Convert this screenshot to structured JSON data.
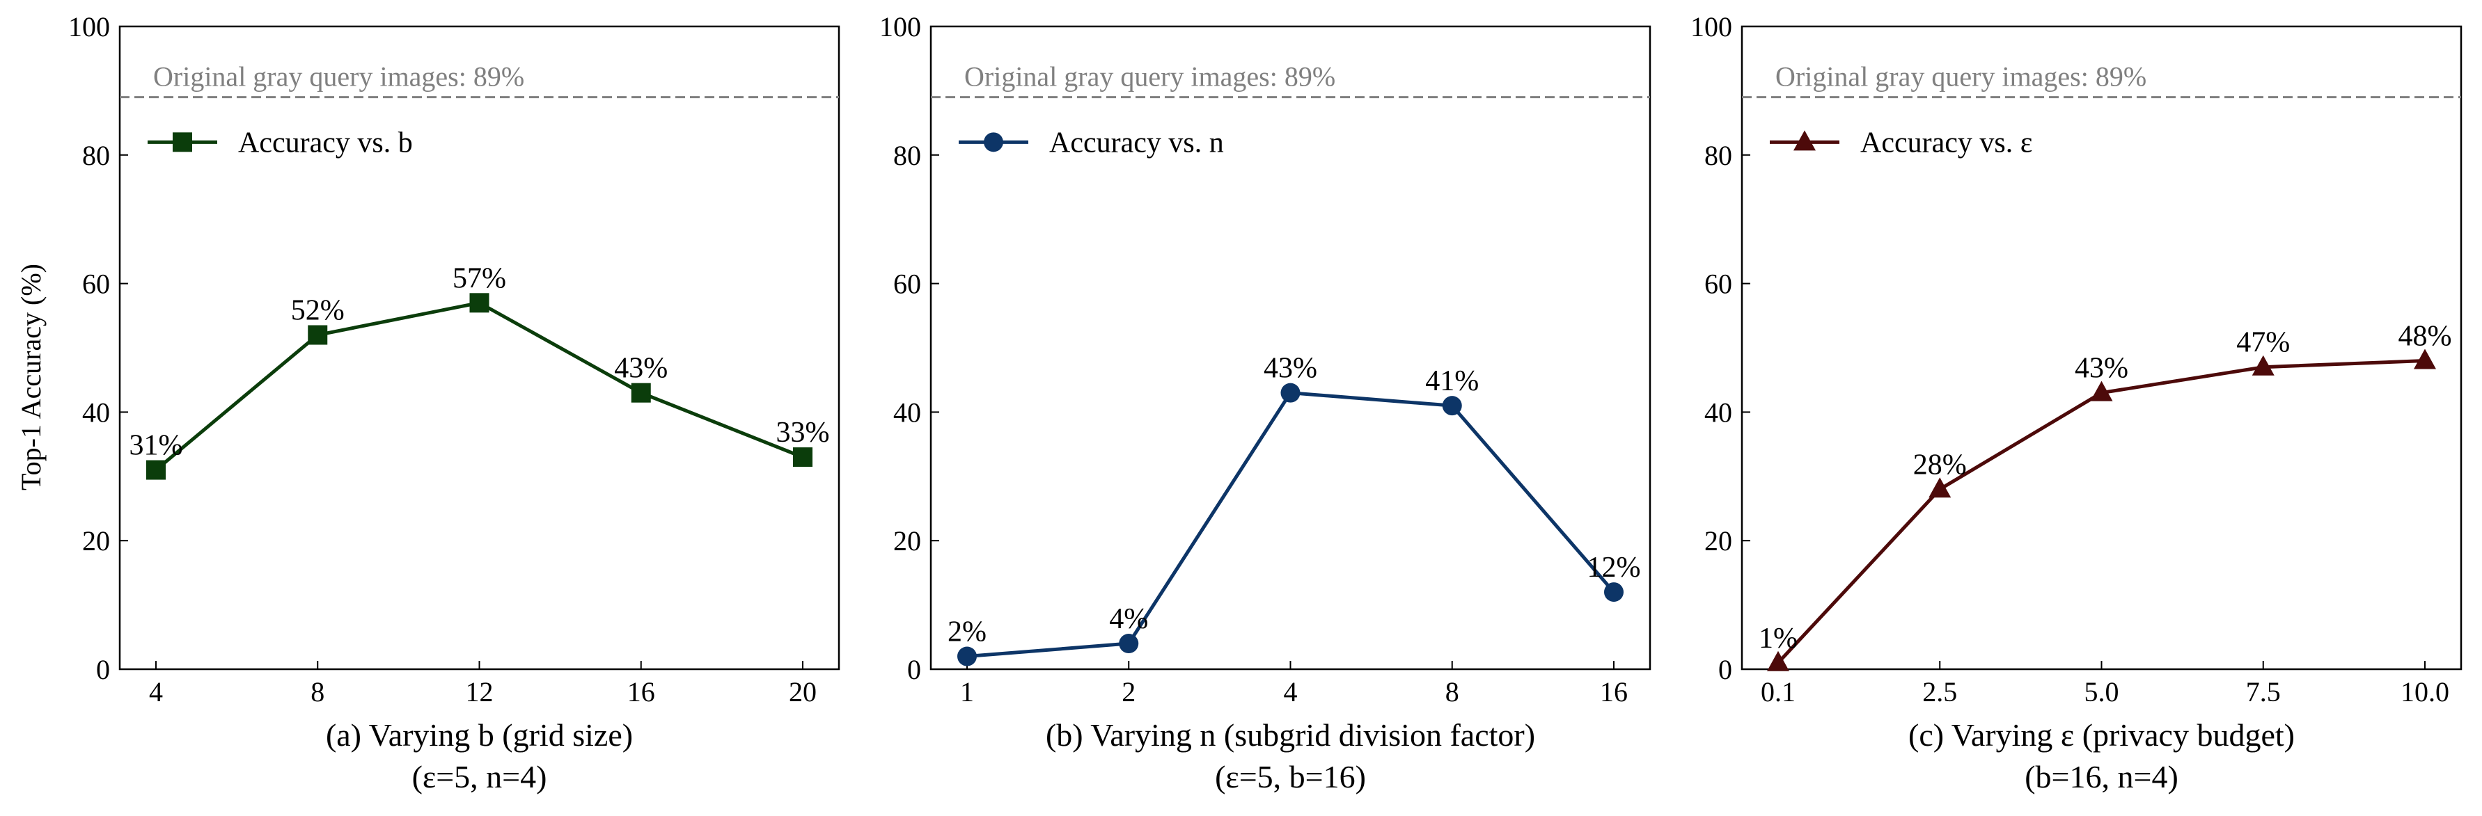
{
  "colors": {
    "chart_a": "#0b3d0b",
    "chart_b": "#0d3567",
    "chart_c": "#4d0a0a",
    "reference": "#808080"
  },
  "chart_data": [
    {
      "type": "line",
      "categories": [
        "4",
        "8",
        "12",
        "16",
        "20"
      ],
      "series": [
        {
          "name": "Accuracy vs. b",
          "values": [
            31,
            52,
            57,
            43,
            33
          ],
          "marker": "square"
        }
      ],
      "data_labels": [
        "31%",
        "52%",
        "57%",
        "43%",
        "33%"
      ],
      "ylabel": "Top-1 Accuracy (%)",
      "ylim": [
        0,
        100
      ],
      "yticks": [
        "0",
        "20",
        "40",
        "60",
        "80",
        "100"
      ],
      "reference_line": {
        "value": 89,
        "label": "Original gray query images: 89%"
      },
      "caption": "(a) Varying b (grid size)",
      "caption_sub": "(ε=5, n=4)",
      "legend_position": "upper-left",
      "grid": false
    },
    {
      "type": "line",
      "categories": [
        "1",
        "2",
        "4",
        "8",
        "16"
      ],
      "series": [
        {
          "name": "Accuracy vs. n",
          "values": [
            2,
            4,
            43,
            41,
            12
          ],
          "marker": "circle"
        }
      ],
      "data_labels": [
        "2%",
        "4%",
        "43%",
        "41%",
        "12%"
      ],
      "ylim": [
        0,
        100
      ],
      "yticks": [
        "0",
        "20",
        "40",
        "60",
        "80",
        "100"
      ],
      "reference_line": {
        "value": 89,
        "label": "Original gray query images: 89%"
      },
      "caption": "(b) Varying n (subgrid division factor)",
      "caption_sub": "(ε=5, b=16)",
      "legend_position": "upper-left",
      "grid": false
    },
    {
      "type": "line",
      "categories": [
        "0.1",
        "2.5",
        "5.0",
        "7.5",
        "10.0"
      ],
      "series": [
        {
          "name": "Accuracy vs. ε",
          "values": [
            1,
            28,
            43,
            47,
            48
          ],
          "marker": "triangle"
        }
      ],
      "data_labels": [
        "1%",
        "28%",
        "43%",
        "47%",
        "48%"
      ],
      "ylim": [
        0,
        100
      ],
      "yticks": [
        "0",
        "20",
        "40",
        "60",
        "80",
        "100"
      ],
      "reference_line": {
        "value": 89,
        "label": "Original gray query images: 89%"
      },
      "caption": "(c) Varying ε (privacy budget)",
      "caption_sub": "(b=16, n=4)",
      "legend_position": "upper-left",
      "grid": false
    }
  ]
}
